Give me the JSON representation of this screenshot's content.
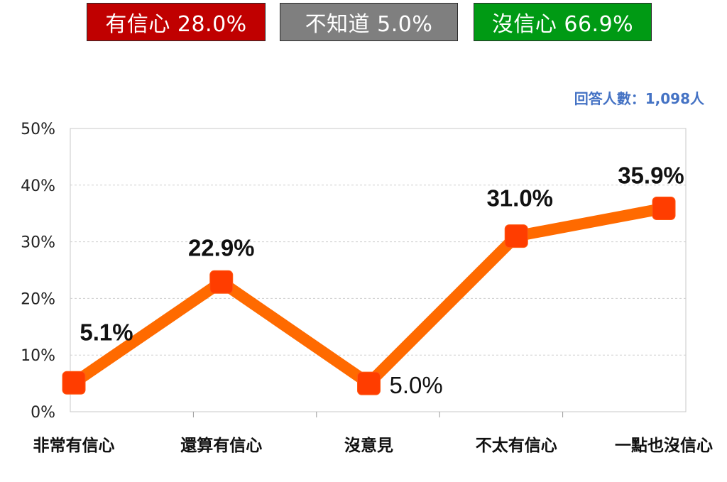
{
  "summary_badges": [
    {
      "text": "有信心 28.0%",
      "color": "#c00000"
    },
    {
      "text": "不知道 5.0%",
      "color": "#7f7f7f"
    },
    {
      "text": "沒信心 66.9%",
      "color": "#009a14"
    }
  ],
  "respondents": "回答人數：1,098人",
  "chart_data": {
    "type": "line",
    "categories": [
      "非常有信心",
      "還算有信心",
      "沒意見",
      "不太有信心",
      "一點也沒信心"
    ],
    "series": [
      {
        "values": [
          5.1,
          22.9,
          5.0,
          31.0,
          35.9
        ],
        "color": "#ff6a00",
        "marker_color": "#ff3d00"
      }
    ],
    "data_labels": [
      "5.1%",
      "22.9%",
      "5.0%",
      "31.0%",
      "35.9%"
    ],
    "y_ticks": [
      "0%",
      "10%",
      "20%",
      "30%",
      "40%",
      "50%"
    ],
    "ylim": [
      0,
      50
    ],
    "grid": true,
    "title": "",
    "xlabel": "",
    "ylabel": ""
  }
}
